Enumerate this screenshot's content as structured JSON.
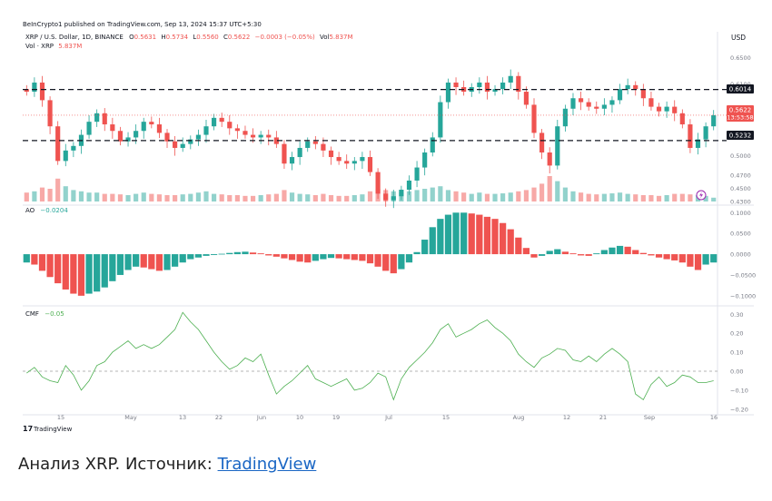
{
  "header": {
    "published_line": "BeInCrypto1 published on TradingView.com, Sep 13, 2024 15:37 UTC+5:30",
    "currency": "USD"
  },
  "legend": {
    "symbol": "XRP / U.S. Dollar, 1D, BINANCE",
    "open_label": "O",
    "open": "0.5631",
    "high_label": "H",
    "high": "0.5734",
    "low_label": "L",
    "low": "0.5560",
    "close_label": "C",
    "close": "0.5622",
    "change": "−0.0003 (−0.05%)",
    "vol_inline_label": "Vol",
    "vol_inline": "5.837M",
    "vol_line_label": "Vol · XRP",
    "vol_line_value": "5.837M",
    "ao_label": "AO",
    "ao_value": "−0.0204",
    "cmf_label": "CMF",
    "cmf_value": "−0.05"
  },
  "price_badges": {
    "resistance": "0.6014",
    "current": "0.5622",
    "countdown": "13:53:58",
    "support": "0.5232"
  },
  "footer": {
    "logo_text": "TradingView"
  },
  "caption": {
    "text": "Анализ XRP. Источник: ",
    "link": "TradingView"
  },
  "colors": {
    "up": "#26a69a",
    "down": "#ef5350",
    "level": "#131722",
    "cmf": "#4caf50",
    "text": "#131722",
    "axis": "#787b86"
  },
  "chart_data": [
    {
      "type": "candlestick",
      "title": "XRP / U.S. Dollar, 1D, BINANCE",
      "x_tick_labels": [
        "15",
        "May",
        "13",
        "22",
        "Jun",
        "10",
        "19",
        "Jul",
        "15",
        "Aug",
        "12",
        "21",
        "Sep",
        "16"
      ],
      "y_tick_labels": [
        "0.6500",
        "0.6100",
        "0.5700",
        "0.5300",
        "0.5000",
        "0.4700",
        "0.4500",
        "0.4300"
      ],
      "horizontal_levels": [
        0.6014,
        0.5232
      ],
      "ylim": [
        0.43,
        0.655
      ],
      "close_path": [
        0.598,
        0.612,
        0.585,
        0.545,
        0.492,
        0.508,
        0.515,
        0.532,
        0.552,
        0.565,
        0.548,
        0.538,
        0.522,
        0.528,
        0.538,
        0.552,
        0.548,
        0.535,
        0.522,
        0.512,
        0.518,
        0.525,
        0.532,
        0.545,
        0.558,
        0.552,
        0.542,
        0.538,
        0.532,
        0.528,
        0.532,
        0.528,
        0.518,
        0.488,
        0.498,
        0.512,
        0.522,
        0.518,
        0.508,
        0.498,
        0.492,
        0.488,
        0.492,
        0.498,
        0.475,
        0.442,
        0.432,
        0.438,
        0.448,
        0.462,
        0.482,
        0.505,
        0.528,
        0.582,
        0.612,
        0.605,
        0.598,
        0.605,
        0.612,
        0.598,
        0.602,
        0.612,
        0.622,
        0.598,
        0.578,
        0.535,
        0.505,
        0.485,
        0.545,
        0.572,
        0.588,
        0.582,
        0.575,
        0.572,
        0.578,
        0.585,
        0.602,
        0.608,
        0.602,
        0.588,
        0.575,
        0.568,
        0.575,
        0.565,
        0.548,
        0.512,
        0.525,
        0.545,
        0.562
      ],
      "volume_path": [
        0.35,
        0.4,
        0.55,
        0.5,
        0.9,
        0.6,
        0.45,
        0.4,
        0.35,
        0.35,
        0.3,
        0.3,
        0.28,
        0.25,
        0.3,
        0.35,
        0.3,
        0.28,
        0.25,
        0.25,
        0.28,
        0.3,
        0.35,
        0.4,
        0.3,
        0.28,
        0.25,
        0.25,
        0.22,
        0.22,
        0.25,
        0.28,
        0.3,
        0.45,
        0.35,
        0.3,
        0.28,
        0.25,
        0.3,
        0.25,
        0.22,
        0.22,
        0.25,
        0.28,
        0.4,
        0.5,
        0.45,
        0.4,
        0.35,
        0.4,
        0.45,
        0.5,
        0.55,
        0.6,
        0.45,
        0.4,
        0.35,
        0.3,
        0.35,
        0.3,
        0.3,
        0.32,
        0.35,
        0.4,
        0.45,
        0.55,
        0.7,
        1.0,
        0.8,
        0.55,
        0.4,
        0.35,
        0.3,
        0.28,
        0.3,
        0.32,
        0.35,
        0.3,
        0.28,
        0.25,
        0.25,
        0.22,
        0.25,
        0.3,
        0.3,
        0.28,
        0.25,
        0.22,
        0.15
      ]
    },
    {
      "type": "bar",
      "title": "AO",
      "y_tick_labels": [
        "0.1000",
        "0.0500",
        "0.0000",
        "−0.0500",
        "−0.1000"
      ],
      "ylim": [
        -0.12,
        0.105
      ],
      "values": [
        -0.02,
        -0.025,
        -0.04,
        -0.055,
        -0.07,
        -0.085,
        -0.095,
        -0.1,
        -0.095,
        -0.09,
        -0.08,
        -0.065,
        -0.05,
        -0.038,
        -0.03,
        -0.032,
        -0.036,
        -0.04,
        -0.038,
        -0.03,
        -0.02,
        -0.012,
        -0.008,
        -0.004,
        -0.002,
        0.001,
        0.003,
        0.005,
        0.006,
        0.004,
        0.002,
        -0.003,
        -0.006,
        -0.01,
        -0.014,
        -0.018,
        -0.02,
        -0.016,
        -0.012,
        -0.009,
        -0.01,
        -0.012,
        -0.014,
        -0.016,
        -0.022,
        -0.03,
        -0.04,
        -0.046,
        -0.036,
        -0.02,
        0.005,
        0.035,
        0.065,
        0.085,
        0.095,
        0.1,
        0.1,
        0.098,
        0.095,
        0.09,
        0.085,
        0.075,
        0.06,
        0.04,
        0.015,
        -0.008,
        -0.004,
        0.008,
        0.012,
        0.006,
        0.002,
        -0.003,
        -0.004,
        0.002,
        0.01,
        0.016,
        0.02,
        0.018,
        0.01,
        0.003,
        -0.003,
        -0.008,
        -0.012,
        -0.015,
        -0.02,
        -0.03,
        -0.038,
        -0.025,
        -0.02
      ]
    },
    {
      "type": "line",
      "title": "CMF",
      "y_tick_labels": [
        "0.30",
        "0.20",
        "0.10",
        "0.00",
        "−0.10",
        "−0.20"
      ],
      "ylim": [
        -0.22,
        0.33
      ],
      "values": [
        -0.01,
        0.02,
        -0.03,
        -0.05,
        -0.06,
        0.03,
        -0.02,
        -0.1,
        -0.05,
        0.03,
        0.05,
        0.1,
        0.13,
        0.16,
        0.12,
        0.14,
        0.12,
        0.14,
        0.18,
        0.22,
        0.31,
        0.26,
        0.22,
        0.16,
        0.1,
        0.05,
        0.01,
        0.03,
        0.07,
        0.05,
        0.09,
        -0.02,
        -0.12,
        -0.08,
        -0.05,
        -0.01,
        0.03,
        -0.04,
        -0.06,
        -0.08,
        -0.06,
        -0.04,
        -0.1,
        -0.09,
        -0.06,
        -0.01,
        -0.03,
        -0.15,
        -0.04,
        0.02,
        0.06,
        0.1,
        0.15,
        0.22,
        0.25,
        0.18,
        0.2,
        0.22,
        0.25,
        0.27,
        0.23,
        0.2,
        0.16,
        0.09,
        0.05,
        0.02,
        0.07,
        0.09,
        0.12,
        0.11,
        0.06,
        0.05,
        0.08,
        0.05,
        0.09,
        0.12,
        0.09,
        0.05,
        -0.12,
        -0.15,
        -0.07,
        -0.03,
        -0.08,
        -0.06,
        -0.02,
        -0.03,
        -0.06,
        -0.06,
        -0.05
      ]
    }
  ]
}
